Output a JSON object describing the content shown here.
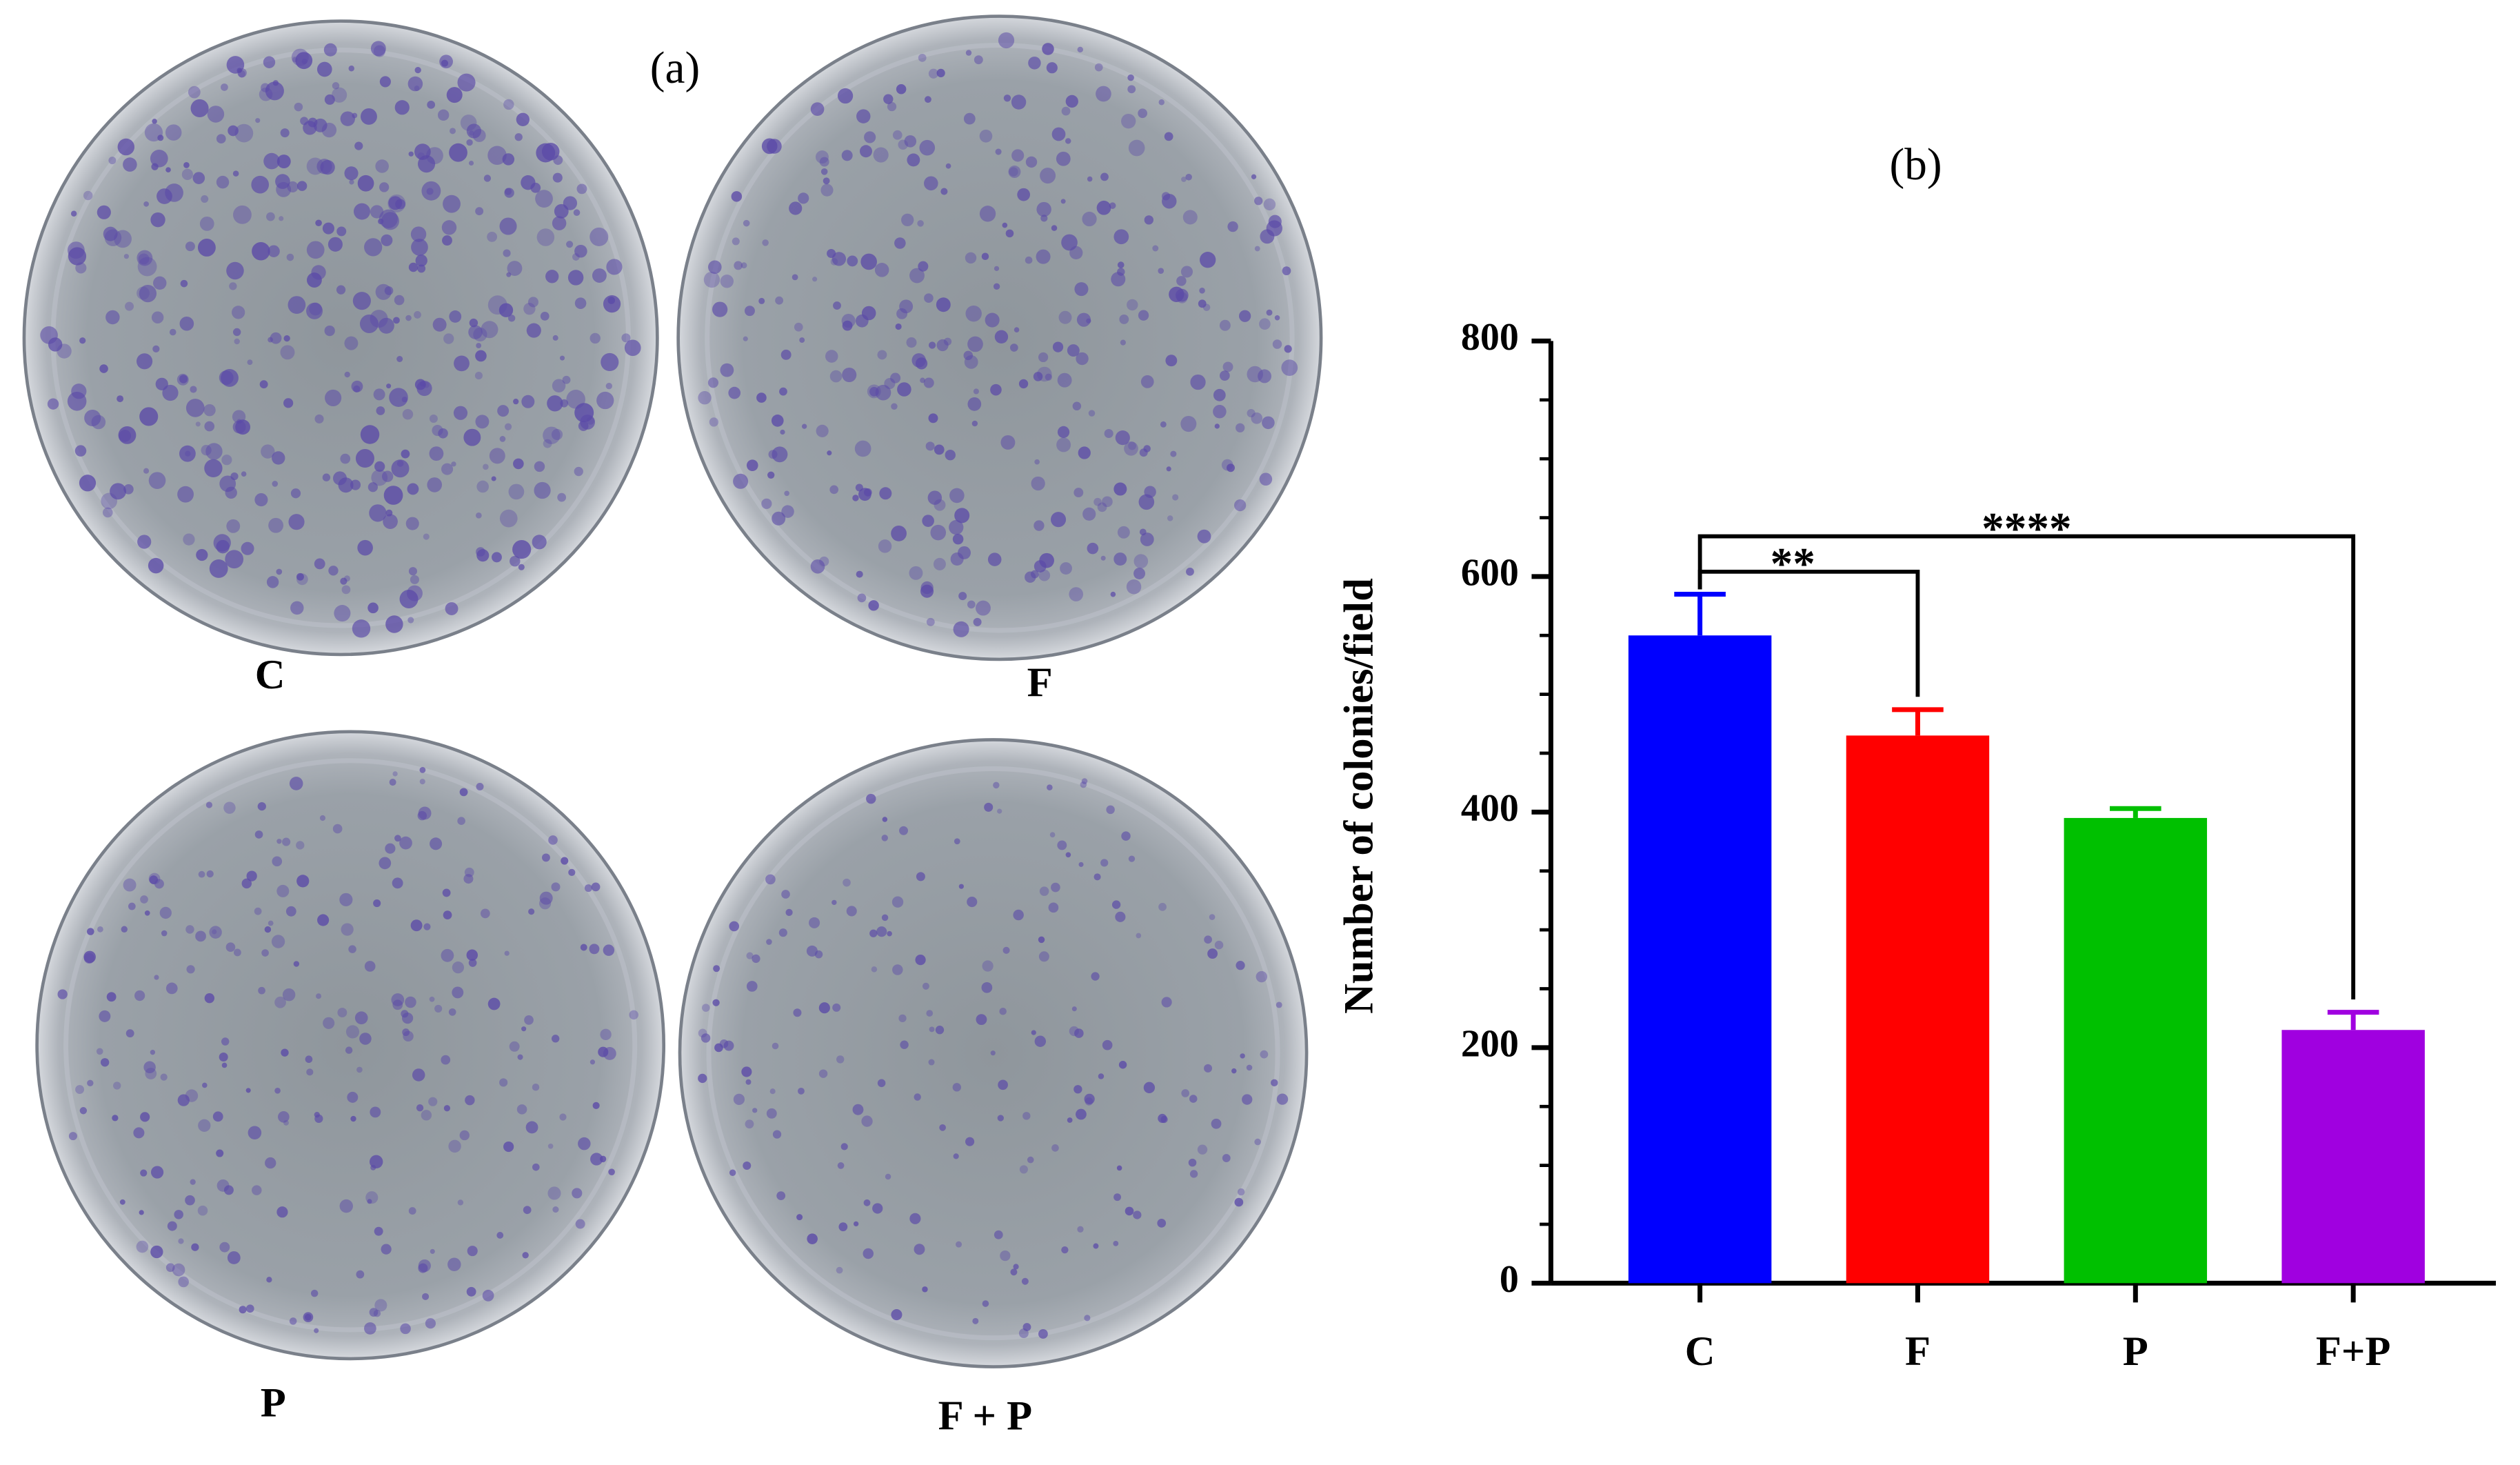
{
  "chart_data": {
    "type": "bar",
    "panel_a": {
      "label": "(a)",
      "plates": [
        "C",
        "F",
        "P",
        "F + P"
      ]
    },
    "title": "(b)",
    "y_label": "Number of colonies/field",
    "categories": [
      "C",
      "F",
      "P",
      "F+P"
    ],
    "series": [
      {
        "name": "Number of colonies/field",
        "values": [
          550,
          465,
          395,
          215
        ],
        "errors": [
          35,
          22,
          8,
          15
        ],
        "colors": [
          "#0000ff",
          "#ff0000",
          "#00c000",
          "#a000e0"
        ]
      }
    ],
    "ylim": [
      0,
      800
    ],
    "yticks": [
      0,
      200,
      400,
      600,
      800
    ],
    "yminorticks": [
      50,
      100,
      150,
      250,
      300,
      350,
      450,
      500,
      550,
      650,
      700,
      750
    ],
    "annotations": [
      {
        "text": "**",
        "between": [
          "C",
          "F"
        ]
      },
      {
        "text": "****",
        "between": [
          "C",
          "F+P"
        ]
      }
    ]
  }
}
